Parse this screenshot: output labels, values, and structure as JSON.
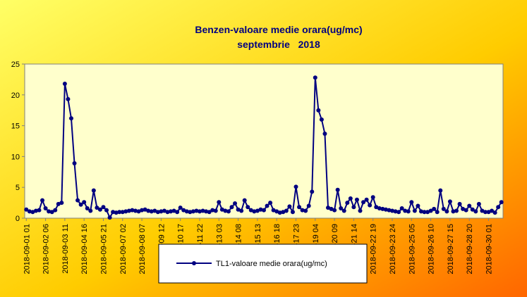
{
  "chart_data": {
    "type": "line",
    "title": "Benzen-valoare medie orara(ug/mc)",
    "subtitle": "septembrie   2018",
    "categories": [
      "2018-09-01 01",
      null,
      null,
      null,
      null,
      null,
      "2018-09-02 06",
      null,
      null,
      null,
      null,
      null,
      "2018-09-03 11",
      null,
      null,
      null,
      null,
      null,
      "2018-09-04 16",
      null,
      null,
      null,
      null,
      null,
      "2018-09-05 21",
      null,
      null,
      null,
      null,
      null,
      "2018-09-07 02",
      null,
      null,
      null,
      null,
      null,
      "2018-09-08 07",
      null,
      null,
      null,
      null,
      null,
      "2018-09-09 12",
      null,
      null,
      null,
      null,
      null,
      "2018-09-10 17",
      null,
      null,
      null,
      null,
      null,
      "2018-09-11 22",
      null,
      null,
      null,
      null,
      null,
      "2018-09-13 03",
      null,
      null,
      null,
      null,
      null,
      "2018-09-14 08",
      null,
      null,
      null,
      null,
      null,
      "2018-09-15 13",
      null,
      null,
      null,
      null,
      null,
      "2018-09-16 18",
      null,
      null,
      null,
      null,
      null,
      "2018-09-17 23",
      null,
      null,
      null,
      null,
      null,
      "2018-09-19 04",
      null,
      null,
      null,
      null,
      null,
      "2018-09-20 09",
      null,
      null,
      null,
      null,
      null,
      "2018-09-21 14",
      null,
      null,
      null,
      null,
      null,
      "2018-09-22 19",
      null,
      null,
      null,
      null,
      null,
      "2018-09-23 24",
      null,
      null,
      null,
      null,
      null,
      "2018-09-25 05",
      null,
      null,
      null,
      null,
      null,
      "2018-09-26 10",
      null,
      null,
      null,
      null,
      null,
      "2018-09-27 15",
      null,
      null,
      null,
      null,
      null,
      "2018-09-28 20",
      null,
      null,
      null,
      null,
      null,
      "2018-09-30 01",
      null,
      null,
      null,
      null
    ],
    "series": [
      {
        "name": "TL1-valoare medie orara(ug/mc)",
        "color": "#000080",
        "values": [
          1.4,
          1.1,
          1.0,
          1.2,
          1.3,
          2.9,
          1.6,
          1.1,
          1.0,
          1.3,
          2.3,
          2.5,
          21.8,
          19.3,
          16.2,
          8.9,
          2.9,
          2.2,
          2.6,
          1.6,
          1.2,
          4.5,
          1.7,
          1.4,
          1.8,
          1.3,
          0.1,
          1.0,
          0.9,
          1.0,
          1.0,
          1.1,
          1.2,
          1.3,
          1.2,
          1.1,
          1.3,
          1.4,
          1.2,
          1.1,
          1.2,
          1.0,
          1.1,
          1.2,
          1.0,
          1.1,
          1.2,
          1.0,
          1.7,
          1.3,
          1.1,
          1.0,
          1.1,
          1.2,
          1.1,
          1.2,
          1.1,
          1.0,
          1.3,
          1.2,
          2.6,
          1.4,
          1.2,
          1.1,
          1.8,
          2.4,
          1.4,
          1.2,
          2.9,
          1.8,
          1.3,
          1.1,
          1.2,
          1.4,
          1.3,
          2.0,
          2.5,
          1.3,
          1.1,
          0.9,
          1.0,
          1.2,
          1.9,
          1.0,
          5.1,
          1.8,
          1.3,
          1.2,
          2.0,
          4.3,
          22.8,
          17.5,
          16.0,
          13.7,
          1.7,
          1.5,
          1.3,
          4.6,
          1.6,
          1.2,
          2.5,
          3.2,
          1.8,
          3.0,
          1.2,
          2.6,
          3.0,
          2.1,
          3.4,
          1.8,
          1.6,
          1.5,
          1.4,
          1.3,
          1.2,
          1.1,
          1.0,
          1.6,
          1.2,
          1.1,
          2.6,
          1.2,
          2.0,
          1.1,
          1.0,
          1.0,
          1.2,
          1.5,
          1.0,
          4.5,
          1.5,
          1.1,
          2.7,
          1.1,
          1.2,
          2.3,
          1.5,
          1.3,
          2.0,
          1.4,
          1.1,
          2.3,
          1.2,
          1.0,
          1.0,
          1.2,
          0.9,
          1.8,
          2.6
        ]
      }
    ],
    "ylim": [
      0,
      25
    ],
    "yticks": [
      0,
      5,
      10,
      15,
      20,
      25
    ]
  }
}
